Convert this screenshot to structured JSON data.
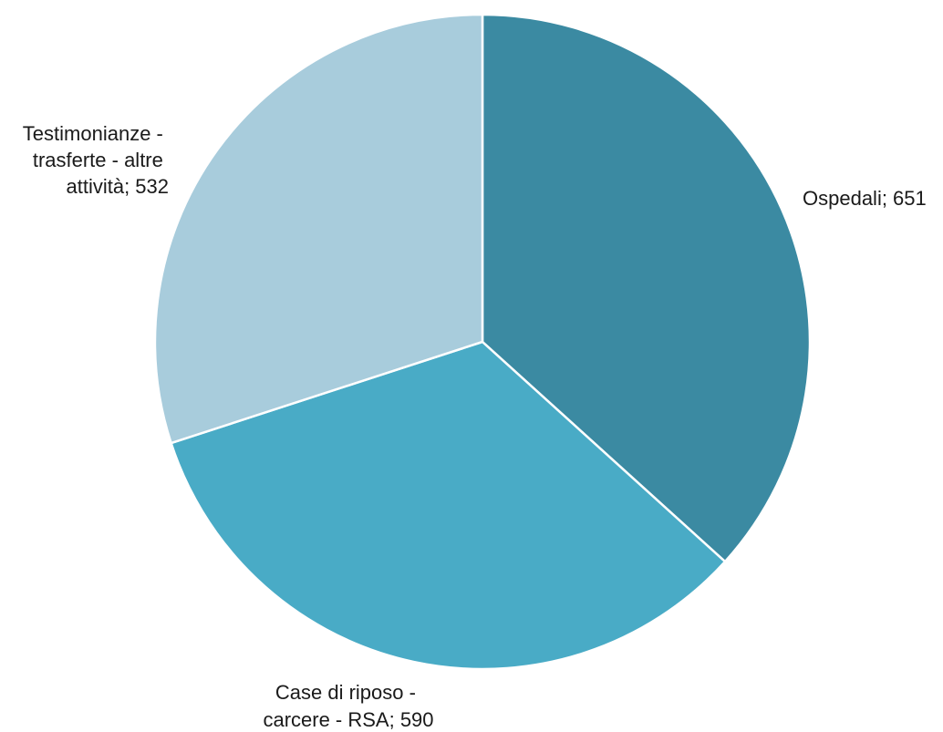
{
  "chart_data": {
    "type": "pie",
    "slices": [
      {
        "label_lines": [
          "Ospedali; 651"
        ],
        "value": 651,
        "color": "#3b8aa2"
      },
      {
        "label_lines": [
          "Case di riposo -",
          "carcere - RSA; 590"
        ],
        "value": 590,
        "color": "#49abc6"
      },
      {
        "label_lines": [
          "Testimonianze -",
          "trasferte - altre",
          "attività; 532"
        ],
        "value": 532,
        "color": "#a8ccdc"
      }
    ]
  }
}
